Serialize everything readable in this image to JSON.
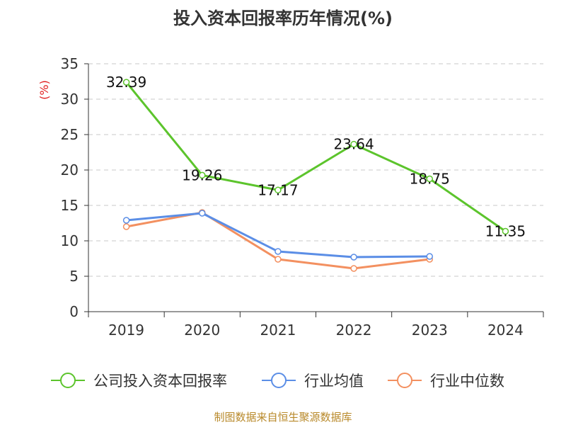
{
  "chart_data": {
    "type": "line",
    "title": "投入资本回报率历年情况(%)",
    "ylabel": "(%)",
    "xlabel": "",
    "categories": [
      "2019",
      "2020",
      "2021",
      "2022",
      "2023",
      "2024"
    ],
    "ylim": [
      0,
      35
    ],
    "yticks": [
      0,
      5,
      10,
      15,
      20,
      25,
      30,
      35
    ],
    "grid": true,
    "legend_position": "bottom",
    "series": [
      {
        "name": "公司投入资本回报率",
        "color": "#5cc42c",
        "values": [
          32.39,
          19.26,
          17.17,
          23.64,
          18.75,
          11.35
        ],
        "labels": [
          "32.39",
          "19.26",
          "17.17",
          "23.64",
          "18.75",
          "11.35"
        ]
      },
      {
        "name": "行业均值",
        "color": "#5b8ee6",
        "values": [
          12.9,
          13.9,
          8.5,
          7.7,
          7.8,
          null
        ]
      },
      {
        "name": "行业中位数",
        "color": "#f39060",
        "values": [
          12.0,
          14.0,
          7.4,
          6.1,
          7.4,
          null
        ]
      }
    ]
  },
  "source": "制图数据来自恒生聚源数据库"
}
